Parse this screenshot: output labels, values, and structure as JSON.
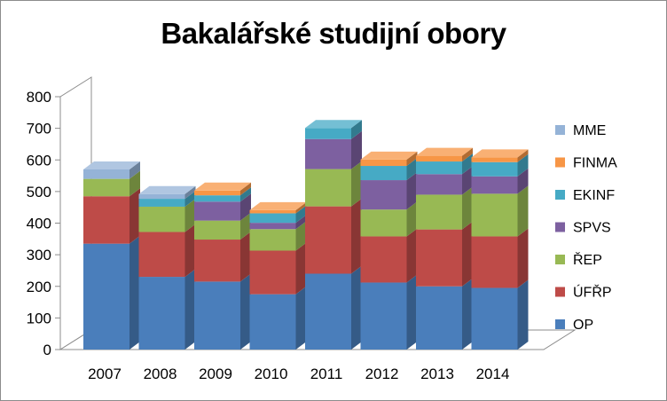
{
  "chart_data": {
    "type": "bar",
    "stacked": true,
    "three_d": true,
    "title": "Bakalářské studijní obory",
    "categories": [
      "2007",
      "2008",
      "2009",
      "2010",
      "2011",
      "2012",
      "2013",
      "2014"
    ],
    "series": [
      {
        "name": "OP",
        "color": "#4a7ebb",
        "values": [
          335,
          230,
          215,
          175,
          240,
          212,
          200,
          195
        ]
      },
      {
        "name": "ÚFŘP",
        "color": "#be4b48",
        "values": [
          150,
          142,
          133,
          138,
          213,
          146,
          180,
          163
        ]
      },
      {
        "name": "ŘEP",
        "color": "#98b954",
        "values": [
          55,
          80,
          60,
          68,
          118,
          85,
          110,
          135
        ]
      },
      {
        "name": "SPVS",
        "color": "#7d60a0",
        "values": [
          0,
          0,
          60,
          20,
          95,
          93,
          65,
          55
        ]
      },
      {
        "name": "EKINF",
        "color": "#46aac5",
        "values": [
          0,
          25,
          20,
          30,
          35,
          45,
          40,
          45
        ]
      },
      {
        "name": "FINMA",
        "color": "#f79646",
        "values": [
          0,
          0,
          15,
          10,
          0,
          20,
          18,
          15
        ]
      },
      {
        "name": "MME",
        "color": "#95b3d7",
        "values": [
          30,
          15,
          0,
          0,
          0,
          0,
          0,
          0
        ]
      }
    ],
    "ylim": [
      0,
      800
    ],
    "yticks": [
      "0",
      "100",
      "200",
      "300",
      "400",
      "500",
      "600",
      "700",
      "800"
    ],
    "grid": false,
    "legend_position": "right"
  }
}
